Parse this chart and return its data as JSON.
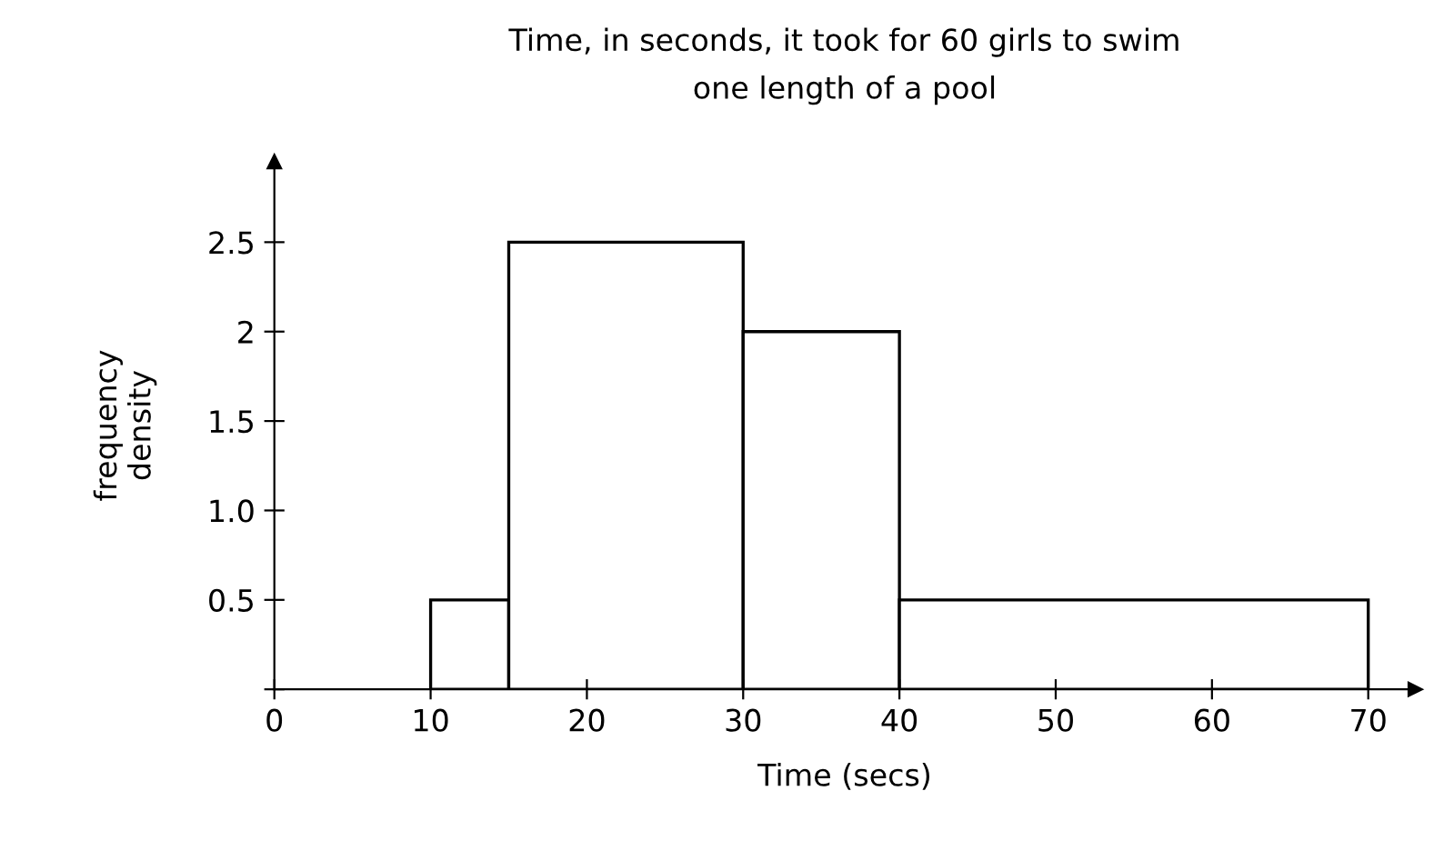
{
  "chart_data": {
    "type": "histogram",
    "title": "Time, in seconds, it took for 60 girls to swim\none length of a pool",
    "xlabel": "Time (secs)",
    "ylabel": "frequency\ndensity",
    "bins": [
      10,
      15,
      30,
      40,
      70
    ],
    "values": [
      0.5,
      2.5,
      2,
      0.5
    ],
    "color": "#ffffff",
    "xlim": [
      0,
      73
    ],
    "xticks": [
      0,
      10,
      20,
      30,
      40,
      50,
      60,
      70
    ],
    "ylim": [
      0,
      2.95
    ],
    "yticks": [
      {
        "value": 0,
        "label": null
      },
      0.5,
      {
        "value": 1,
        "label": "1.0"
      },
      1.5,
      2,
      2.5
    ],
    "grid": false,
    "legend": false
  }
}
